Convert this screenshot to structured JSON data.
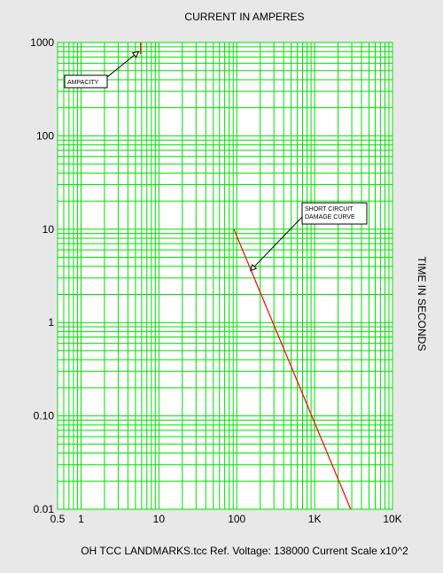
{
  "chart_data": {
    "type": "line",
    "title": "CURRENT IN AMPERES",
    "ylabel": "TIME IN SECONDS",
    "footer": "OH TCC LANDMARKS.tcc   Ref. Voltage: 138000   Current Scale x10^2",
    "x_scale": "log",
    "y_scale": "log",
    "xlim": [
      0.5,
      10000
    ],
    "ylim": [
      0.01,
      1000
    ],
    "grid": true,
    "x_ticks": [
      {
        "value": 0.5,
        "label": "0.5"
      },
      {
        "value": 1,
        "label": "1"
      },
      {
        "value": 10,
        "label": "10"
      },
      {
        "value": 100,
        "label": "100"
      },
      {
        "value": 1000,
        "label": "1K"
      },
      {
        "value": 10000,
        "label": "10K"
      }
    ],
    "y_ticks": [
      {
        "value": 1000,
        "label": "1000"
      },
      {
        "value": 100,
        "label": "100"
      },
      {
        "value": 10,
        "label": "10"
      },
      {
        "value": 1,
        "label": "1"
      },
      {
        "value": 0.1,
        "label": "0.10"
      },
      {
        "value": 0.01,
        "label": "0.01"
      }
    ],
    "series": [
      {
        "name": "AMPACITY",
        "color": "#ff0000",
        "x": [
          5.8,
          5.8
        ],
        "y": [
          1000,
          750
        ]
      },
      {
        "name": "SHORT CIRCUIT DAMAGE CURVE",
        "color": "#ff0000",
        "x": [
          92,
          2900
        ],
        "y": [
          10,
          0.01
        ]
      }
    ],
    "annotations": [
      {
        "text": "AMPACITY",
        "target": {
          "x": 5.5,
          "y": 800
        }
      },
      {
        "text_lines": [
          "SHORT CIRCUIT",
          "DAMAGE CURVE"
        ],
        "target": {
          "x": 150,
          "y": 3.6
        }
      }
    ],
    "colors": {
      "background": "#e8e8e8",
      "plot_background": "#ffffff",
      "grid": "#00e000",
      "curve": "#ff0000"
    }
  }
}
